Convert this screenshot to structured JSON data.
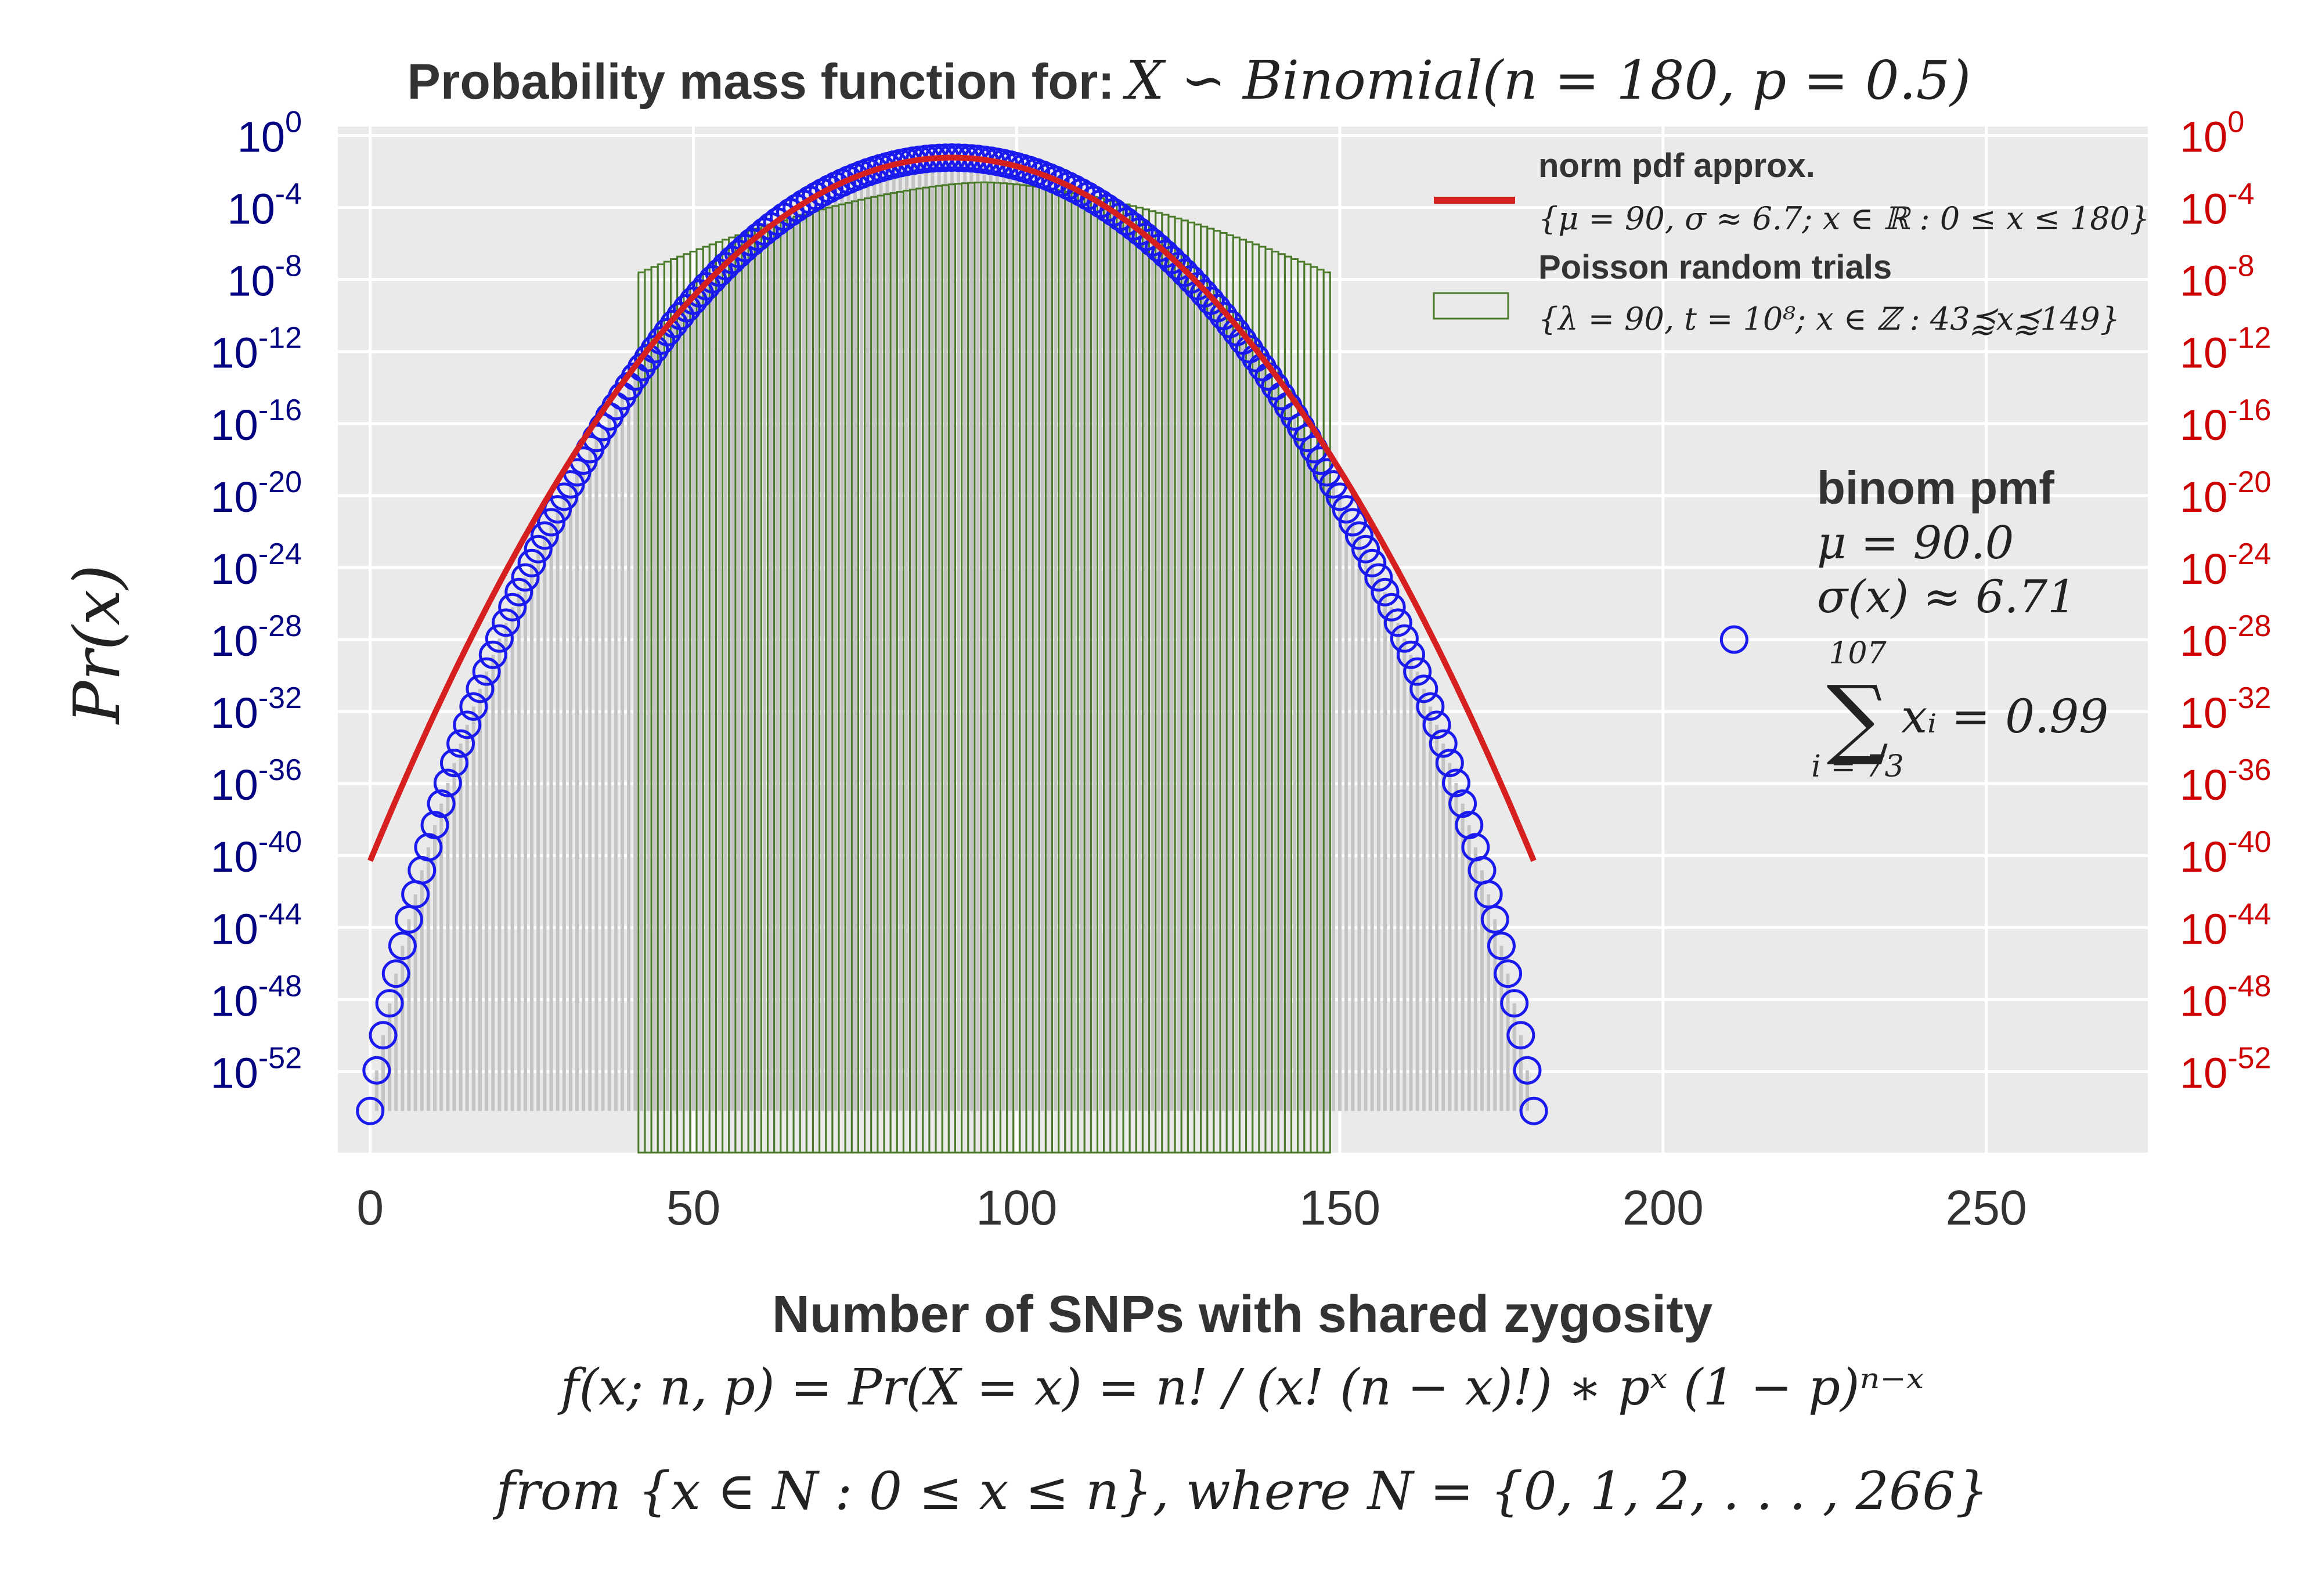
{
  "chart_data": {
    "type": "bar",
    "title_prefix": "Probability mass function for:",
    "title_math": "X ∽ Binomial(n = 180, p = 0.5)",
    "xlabel": "Number of SNPs with shared zygosity",
    "ylabel": "Pr(x)",
    "formula_line1": "f(x; n, p) = Pr(X = x) = n! / (x! (n − x)!) ∗ pˣ (1 − p)ⁿ⁻ˣ",
    "formula_line2": "from {x ∈ N : 0 ≤ x ≤ n},  where N = {0, 1, 2, . . . , 266}",
    "xlim": [
      -5,
      275
    ],
    "ylim_log10": [
      -56.5,
      0.5
    ],
    "log_scale_y": true,
    "grid": true,
    "x_ticks": [
      "0",
      "50",
      "100",
      "150",
      "200",
      "250"
    ],
    "x_tick_values": [
      0,
      50,
      100,
      150,
      200,
      250
    ],
    "y_ticks_left": [
      {
        "base": "10",
        "exp": "0",
        "value": 0
      },
      {
        "base": "10",
        "exp": "-4",
        "value": -4
      },
      {
        "base": "10",
        "exp": "-8",
        "value": -8
      },
      {
        "base": "10",
        "exp": "-12",
        "value": -12
      },
      {
        "base": "10",
        "exp": "-16",
        "value": -16
      },
      {
        "base": "10",
        "exp": "-20",
        "value": -20
      },
      {
        "base": "10",
        "exp": "-24",
        "value": -24
      },
      {
        "base": "10",
        "exp": "-28",
        "value": -28
      },
      {
        "base": "10",
        "exp": "-32",
        "value": -32
      },
      {
        "base": "10",
        "exp": "-36",
        "value": -36
      },
      {
        "base": "10",
        "exp": "-40",
        "value": -40
      },
      {
        "base": "10",
        "exp": "-44",
        "value": -44
      },
      {
        "base": "10",
        "exp": "-48",
        "value": -48
      },
      {
        "base": "10",
        "exp": "-52",
        "value": -52
      }
    ],
    "y_ticks_right": [
      {
        "base": "10",
        "exp": "0",
        "value": 0
      },
      {
        "base": "10",
        "exp": "-4",
        "value": -4
      },
      {
        "base": "10",
        "exp": "-8",
        "value": -8
      },
      {
        "base": "10",
        "exp": "-12",
        "value": -12
      },
      {
        "base": "10",
        "exp": "-16",
        "value": -16
      },
      {
        "base": "10",
        "exp": "-20",
        "value": -20
      },
      {
        "base": "10",
        "exp": "-24",
        "value": -24
      },
      {
        "base": "10",
        "exp": "-28",
        "value": -28
      },
      {
        "base": "10",
        "exp": "-32",
        "value": -32
      },
      {
        "base": "10",
        "exp": "-36",
        "value": -36
      },
      {
        "base": "10",
        "exp": "-40",
        "value": -40
      },
      {
        "base": "10",
        "exp": "-44",
        "value": -44
      },
      {
        "base": "10",
        "exp": "-48",
        "value": -48
      },
      {
        "base": "10",
        "exp": "-52",
        "value": -52
      }
    ],
    "binomial": {
      "n": 180,
      "p": 0.5,
      "x_range": [
        0,
        180
      ]
    },
    "normal_approx": {
      "mu": 90,
      "sigma": 6.71,
      "x_range": [
        0,
        180
      ],
      "color": "#d62020"
    },
    "poisson_bars": {
      "x_range": [
        42,
        148
      ],
      "top_log10_at_edges": -7.6,
      "top_log10_at_center": -2.6,
      "color": "#4a7a2a"
    },
    "marker_color": "#1a1aee",
    "legend": {
      "position": "top-right",
      "entries": [
        {
          "label": "norm pdf approx.",
          "sub": "{μ = 90, σ ≈ 6.7; x ∈ ℝ : 0 ≤ x ≤ 180}",
          "kind": "line"
        },
        {
          "label": "Poisson random trials",
          "sub": "{λ = 90, t = 10⁸; x ∈ ℤ : 43⪷x⪷149}",
          "kind": "bar"
        }
      ]
    },
    "annotation": {
      "heading": "binom pmf",
      "mu_text": "μ = 90.0",
      "sigma_text": "σ(x) ≈ 6.71",
      "sum_upper": "107",
      "sum_symbol": "∑",
      "sum_lower": "i = 73",
      "sum_expr": "xᵢ = 0.99",
      "marker_x": 211,
      "marker_log10": -28
    }
  }
}
